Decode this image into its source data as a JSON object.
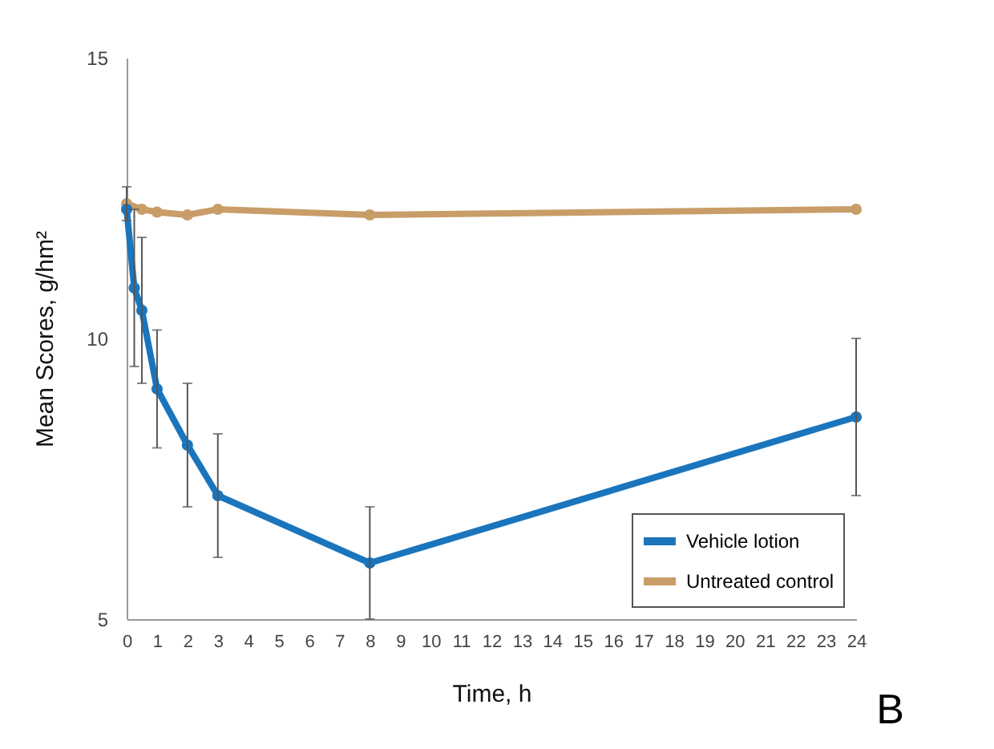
{
  "chart_data": {
    "type": "line",
    "xlabel": "Time, h",
    "ylabel": "Mean Scores, g/hm²",
    "xlim": [
      0,
      24
    ],
    "xticks": [
      0,
      1,
      2,
      3,
      4,
      5,
      6,
      7,
      8,
      9,
      10,
      11,
      12,
      13,
      14,
      15,
      16,
      17,
      18,
      19,
      20,
      21,
      22,
      23,
      24
    ],
    "ylim": [
      5,
      15
    ],
    "yticks": [
      5,
      10,
      15
    ],
    "grid": false,
    "legend": "bottom right",
    "marker": "circle",
    "line_style": "solid",
    "annotations": [
      "B"
    ],
    "series": [
      {
        "name": "Vehicle lotion",
        "color": "#1a75bc",
        "x": [
          0,
          0.25,
          0.5,
          1,
          2,
          3,
          8,
          24
        ],
        "values": [
          12.3,
          10.9,
          10.5,
          9.1,
          8.1,
          7.2,
          6.0,
          8.6
        ],
        "errors": [
          null,
          1.4,
          1.3,
          1.05,
          1.1,
          1.1,
          1.0,
          1.4
        ]
      },
      {
        "name": "Untreated control",
        "color": "#c89d68",
        "x": [
          0,
          0.5,
          1,
          2,
          3,
          8,
          24
        ],
        "values": [
          12.4,
          12.3,
          12.25,
          12.2,
          12.3,
          12.2,
          12.3
        ],
        "errors": [
          0.3,
          null,
          null,
          null,
          null,
          null,
          null
        ]
      }
    ]
  }
}
